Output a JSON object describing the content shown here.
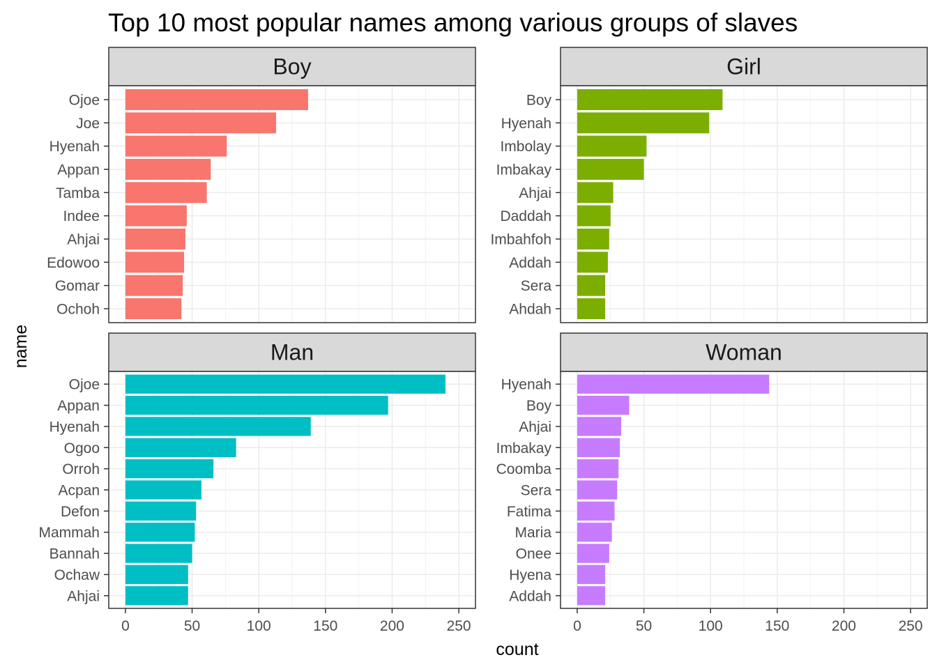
{
  "chart_data": {
    "type": "bar",
    "orientation": "horizontal",
    "title": "Top 10 most popular names among various groups of slaves",
    "xlabel": "count",
    "ylabel": "name",
    "xlim": [
      0,
      250
    ],
    "x_ticks": [
      "0",
      "50",
      "100",
      "150",
      "200",
      "250"
    ],
    "grid": true,
    "legend": "none",
    "facets": [
      {
        "name": "Boy",
        "color": "#F8766D",
        "categories": [
          "Ojoe",
          "Joe",
          "Hyenah",
          "Appan",
          "Tamba",
          "Indee",
          "Ahjai",
          "Edowoo",
          "Gomar",
          "Ochoh"
        ],
        "values": [
          137,
          113,
          76,
          64,
          61,
          46,
          45,
          44,
          43,
          42
        ]
      },
      {
        "name": "Girl",
        "color": "#7CAE00",
        "categories": [
          "Boy",
          "Hyenah",
          "Imbolay",
          "Imbakay",
          "Ahjai",
          "Daddah",
          "Imbahfoh",
          "Addah",
          "Sera",
          "Ahdah"
        ],
        "values": [
          109,
          99,
          52,
          50,
          27,
          25,
          24,
          23,
          21,
          21
        ]
      },
      {
        "name": "Man",
        "color": "#00BFC4",
        "categories": [
          "Ojoe",
          "Appan",
          "Hyenah",
          "Ogoo",
          "Orroh",
          "Acpan",
          "Defon",
          "Mammah",
          "Bannah",
          "Ochaw",
          "Ahjai"
        ],
        "values": [
          240,
          197,
          139,
          83,
          66,
          57,
          53,
          52,
          50,
          47,
          47
        ]
      },
      {
        "name": "Woman",
        "color": "#C77CFF",
        "categories": [
          "Hyenah",
          "Boy",
          "Ahjai",
          "Imbakay",
          "Coomba",
          "Sera",
          "Fatima",
          "Maria",
          "Onee",
          "Hyena",
          "Addah"
        ],
        "values": [
          144,
          39,
          33,
          32,
          31,
          30,
          28,
          26,
          24,
          21,
          21
        ]
      }
    ]
  }
}
